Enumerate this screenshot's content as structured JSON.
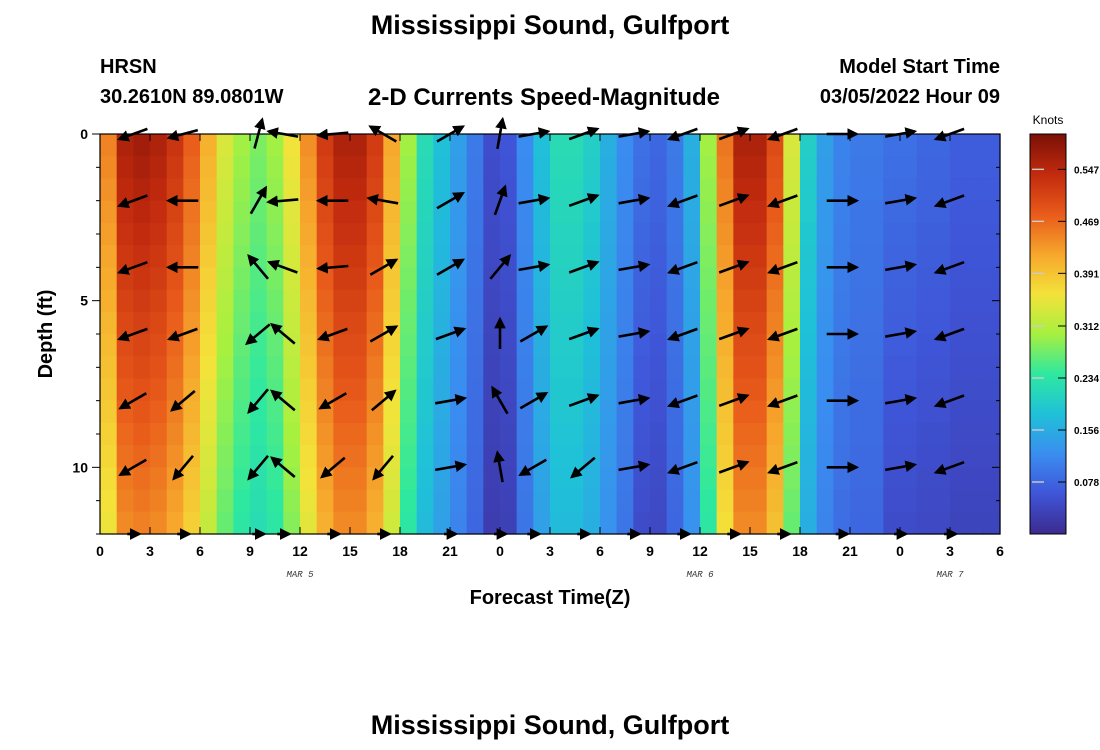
{
  "header": {
    "title": "Mississippi Sound, Gulfport",
    "station": "HRSN",
    "coords": "30.2610N  89.0801W",
    "plot_title": "2-D Currents Speed-Magnitude",
    "model_start_label": "Model Start Time",
    "model_start_value": "03/05/2022 Hour 09"
  },
  "footer": {
    "title": "Mississippi Sound, Gulfport"
  },
  "colors": {
    "scale": [
      "#3b2a8f",
      "#3f55d8",
      "#3a8df0",
      "#1fc1d8",
      "#2ee8a0",
      "#a6f040",
      "#f4e23a",
      "#f6a62c",
      "#e85a1a",
      "#c22a0e",
      "#7a1006"
    ]
  },
  "chart_data": {
    "type": "heatmap",
    "xlabel": "Forecast Time(Z)",
    "ylabel": "Depth (ft)",
    "x_range": [
      0,
      54
    ],
    "y_range": [
      0,
      12
    ],
    "x_ticks": [
      0,
      3,
      6,
      9,
      12,
      15,
      18,
      21,
      24,
      27,
      30,
      33,
      36,
      39,
      42,
      45,
      48,
      51,
      54
    ],
    "x_tick_labels": [
      "0",
      "3",
      "6",
      "9",
      "12",
      "15",
      "18",
      "21",
      "0",
      "3",
      "6",
      "9",
      "12",
      "15",
      "18",
      "21",
      "0",
      "3",
      "6"
    ],
    "y_ticks": [
      0,
      5,
      10
    ],
    "y_tick_labels": [
      "0",
      "5",
      "10"
    ],
    "date_labels": [
      {
        "text": "MAR 5",
        "x": 12
      },
      {
        "text": "MAR 6",
        "x": 36
      },
      {
        "text": "MAR 7",
        "x": 51
      }
    ],
    "colorbar": {
      "title": "Knots",
      "range": [
        0,
        0.6
      ],
      "ticks": [
        0.078,
        0.156,
        0.234,
        0.312,
        0.391,
        0.469,
        0.547
      ],
      "tick_labels": [
        "0.078",
        "0.156",
        "0.234",
        "0.312",
        "0.391",
        "0.469",
        "0.547"
      ]
    },
    "time_hours": [
      0.5,
      1.5,
      2.5,
      3.5,
      4.5,
      5.5,
      6.5,
      7.5,
      8.5,
      9.5,
      10.5,
      11.5,
      12.5,
      13.5,
      14.5,
      15.5,
      16.5,
      17.5,
      18.5,
      19.5,
      20.5,
      21.5,
      22.5,
      23.5,
      24.5,
      25.5,
      26.5,
      27.5,
      28.5,
      29.5,
      30.5,
      31.5,
      32.5,
      33.5,
      34.5,
      35.5,
      36.5,
      37.5,
      38.5,
      39.5,
      40.5,
      41.5,
      42.5,
      43.5,
      44.5,
      45.5,
      46.5,
      47.5,
      48.5,
      49.5,
      50.5,
      51.5,
      52.5,
      53.5
    ],
    "surface_speed_knots": [
      0.45,
      0.56,
      0.57,
      0.56,
      0.53,
      0.48,
      0.41,
      0.34,
      0.3,
      0.28,
      0.3,
      0.36,
      0.44,
      0.52,
      0.56,
      0.56,
      0.52,
      0.42,
      0.3,
      0.22,
      0.18,
      0.14,
      0.1,
      0.05,
      0.06,
      0.12,
      0.18,
      0.22,
      0.22,
      0.2,
      0.16,
      0.12,
      0.09,
      0.08,
      0.1,
      0.16,
      0.3,
      0.46,
      0.56,
      0.56,
      0.5,
      0.34,
      0.2,
      0.14,
      0.11,
      0.1,
      0.1,
      0.09,
      0.09,
      0.08,
      0.08,
      0.07,
      0.07,
      0.07
    ],
    "arrow_rows_ft": [
      0,
      2,
      4,
      6,
      8,
      10,
      12
    ],
    "arrow_times_hours": [
      2,
      5,
      9.5,
      11,
      14,
      17,
      21,
      24,
      26,
      29,
      32,
      35,
      38,
      41,
      44.5,
      48,
      51
    ],
    "arrow_angles_deg": [
      [
        200,
        195,
        75,
        170,
        185,
        150,
        30,
        80,
        10,
        20,
        10,
        200,
        20,
        200,
        0,
        10,
        200
      ],
      [
        200,
        180,
        60,
        185,
        180,
        170,
        30,
        70,
        10,
        20,
        10,
        200,
        20,
        200,
        0,
        10,
        200
      ],
      [
        200,
        180,
        130,
        160,
        185,
        30,
        30,
        50,
        10,
        20,
        10,
        200,
        20,
        200,
        0,
        10,
        200
      ],
      [
        200,
        200,
        220,
        140,
        200,
        30,
        20,
        90,
        30,
        20,
        10,
        200,
        20,
        200,
        0,
        10,
        200
      ],
      [
        210,
        220,
        230,
        140,
        210,
        40,
        10,
        120,
        30,
        20,
        10,
        200,
        20,
        200,
        0,
        10,
        200
      ],
      [
        210,
        230,
        230,
        140,
        220,
        230,
        10,
        100,
        210,
        220,
        10,
        200,
        20,
        200,
        0,
        10,
        200
      ],
      [
        0,
        0,
        0,
        0,
        0,
        0,
        0,
        0,
        0,
        0,
        0,
        0,
        0,
        0,
        0,
        0,
        0
      ]
    ]
  }
}
